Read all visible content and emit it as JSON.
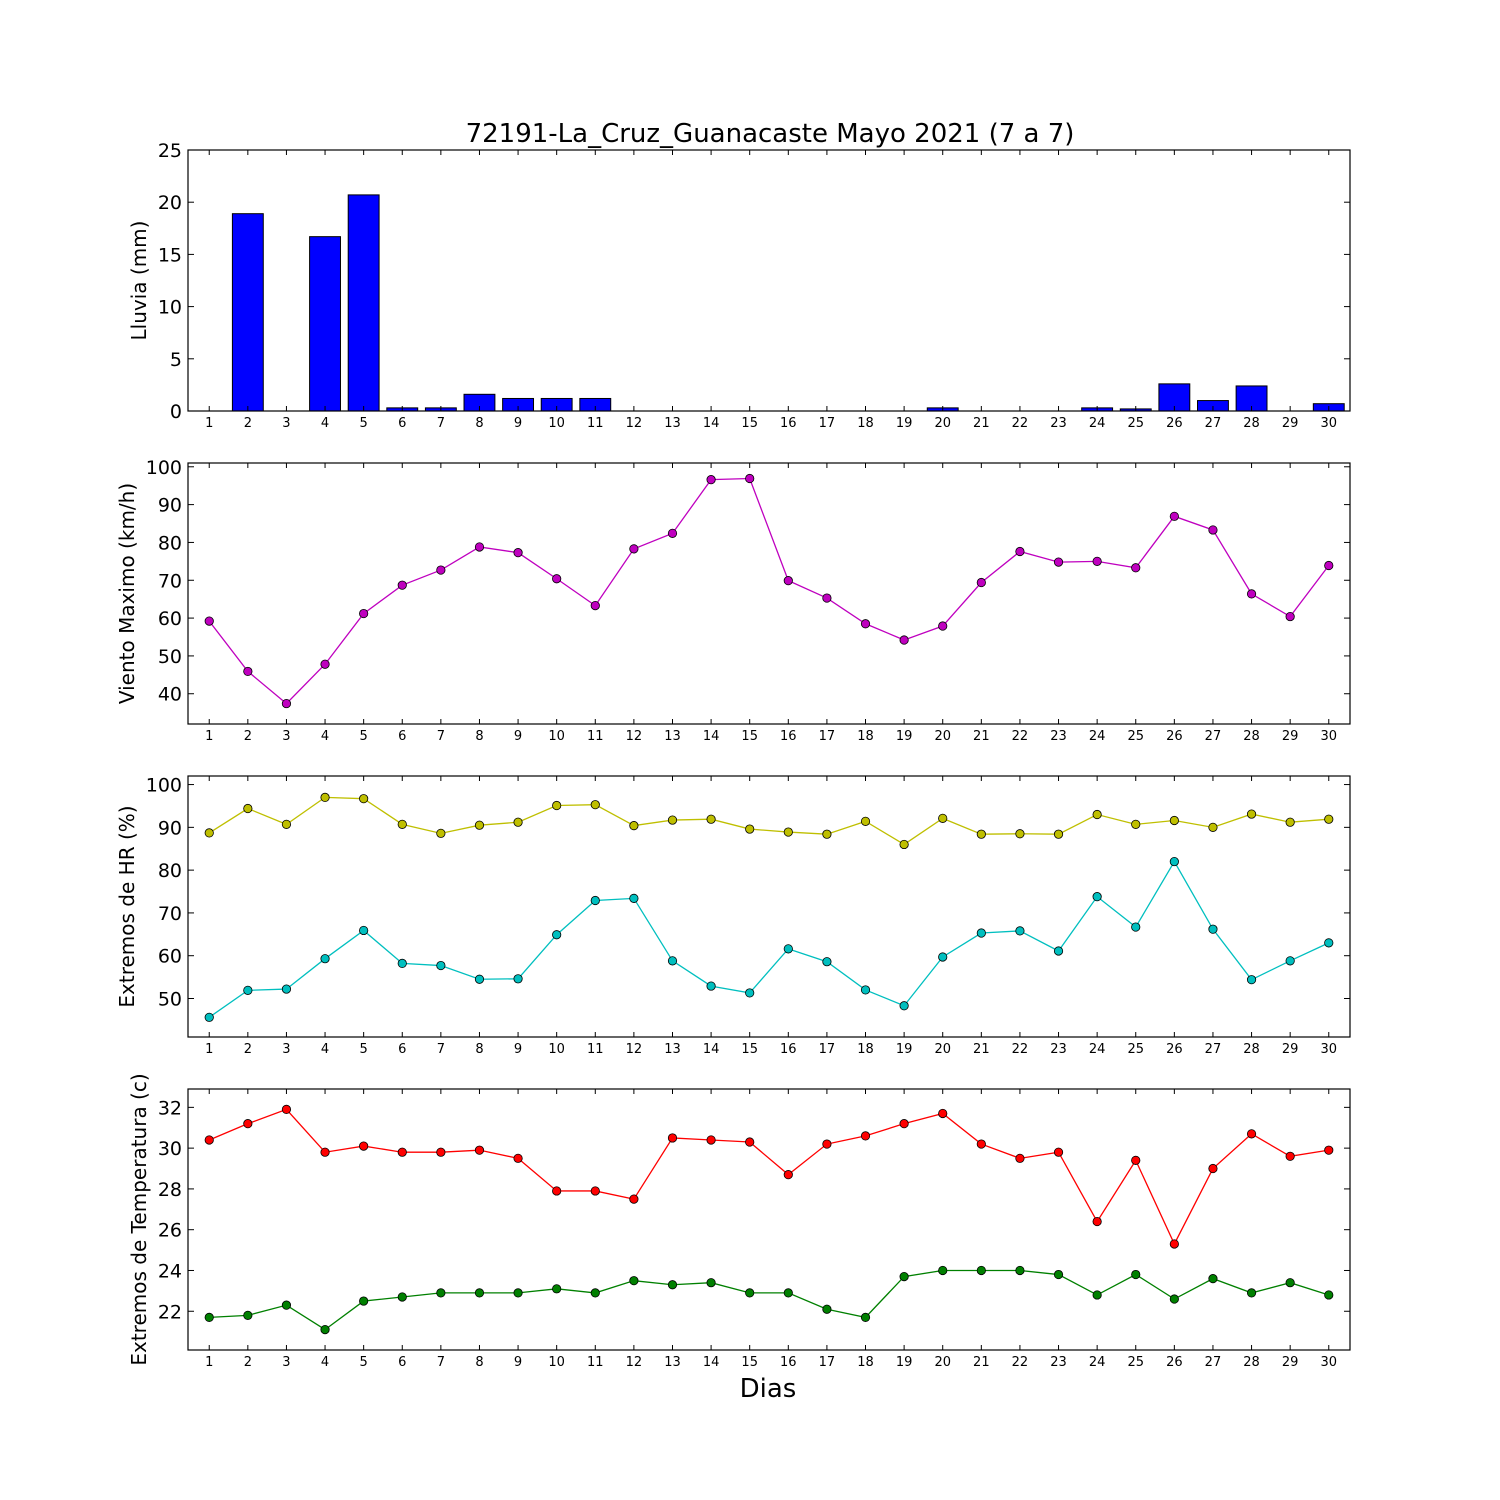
{
  "figure": {
    "title": "72191-La_Cruz_Guanacaste Mayo 2021  (7 a 7)",
    "xlabel": "Dias"
  },
  "chart_data": [
    {
      "type": "bar",
      "ylabel": "Lluvia (mm)",
      "categories": [
        "1",
        "2",
        "3",
        "4",
        "5",
        "6",
        "7",
        "8",
        "9",
        "10",
        "11",
        "12",
        "13",
        "14",
        "15",
        "16",
        "17",
        "18",
        "19",
        "20",
        "21",
        "22",
        "23",
        "24",
        "25",
        "26",
        "27",
        "28",
        "29",
        "30"
      ],
      "ylim": [
        0,
        25
      ],
      "yticks": [
        0,
        5,
        10,
        15,
        20,
        25
      ],
      "bar_color": "#0000ff",
      "series": [
        {
          "values": [
            0,
            18.9,
            0,
            16.7,
            20.7,
            0.3,
            0.3,
            1.6,
            1.2,
            1.2,
            1.2,
            0,
            0,
            0,
            0,
            0,
            0,
            0,
            0,
            0.3,
            0,
            0,
            0,
            0.3,
            0.2,
            2.6,
            1.0,
            2.4,
            0,
            0.7
          ],
          "color": "#0000ff"
        }
      ]
    },
    {
      "type": "line",
      "ylabel": "Viento Maximo (km/h)",
      "categories": [
        "1",
        "2",
        "3",
        "4",
        "5",
        "6",
        "7",
        "8",
        "9",
        "10",
        "11",
        "12",
        "13",
        "14",
        "15",
        "16",
        "17",
        "18",
        "19",
        "20",
        "21",
        "22",
        "23",
        "24",
        "25",
        "26",
        "27",
        "28",
        "29",
        "30"
      ],
      "ylim": [
        32,
        101
      ],
      "yticks": [
        40,
        50,
        60,
        70,
        80,
        90,
        100
      ],
      "series": [
        {
          "values": [
            59.2,
            45.9,
            37.4,
            47.8,
            61.2,
            68.7,
            72.7,
            78.8,
            77.3,
            70.4,
            63.3,
            78.3,
            82.4,
            96.6,
            96.9,
            69.9,
            65.3,
            58.5,
            54.2,
            57.9,
            69.4,
            77.6,
            74.8,
            75.0,
            73.3,
            86.9,
            83.3,
            66.4,
            60.4,
            73.9
          ],
          "color": "#bf00bf"
        }
      ]
    },
    {
      "type": "line",
      "ylabel": "Extremos de HR (%)",
      "categories": [
        "1",
        "2",
        "3",
        "4",
        "5",
        "6",
        "7",
        "8",
        "9",
        "10",
        "11",
        "12",
        "13",
        "14",
        "15",
        "16",
        "17",
        "18",
        "19",
        "20",
        "21",
        "22",
        "23",
        "24",
        "25",
        "26",
        "27",
        "28",
        "29",
        "30"
      ],
      "ylim": [
        41,
        102
      ],
      "yticks": [
        50,
        60,
        70,
        80,
        90,
        100
      ],
      "series": [
        {
          "values": [
            88.7,
            94.4,
            90.7,
            97.0,
            96.7,
            90.7,
            88.6,
            90.5,
            91.2,
            95.1,
            95.3,
            90.4,
            91.7,
            91.9,
            89.6,
            88.9,
            88.4,
            91.4,
            86.0,
            92.1,
            88.4,
            88.5,
            88.4,
            93.0,
            90.7,
            91.6,
            90.0,
            93.1,
            91.2,
            91.9
          ],
          "color": "#bfbf00"
        },
        {
          "values": [
            45.6,
            51.9,
            52.2,
            59.3,
            65.9,
            58.2,
            57.7,
            54.5,
            54.6,
            64.9,
            72.9,
            73.4,
            58.8,
            52.9,
            51.3,
            61.6,
            58.6,
            52.0,
            48.3,
            59.7,
            65.3,
            65.8,
            61.1,
            73.8,
            66.7,
            82.0,
            66.2,
            54.4,
            58.8,
            63.0
          ],
          "color": "#00bfbf"
        }
      ]
    },
    {
      "type": "line",
      "ylabel": "Extremos de Temperatura (c)",
      "categories": [
        "1",
        "2",
        "3",
        "4",
        "5",
        "6",
        "7",
        "8",
        "9",
        "10",
        "11",
        "12",
        "13",
        "14",
        "15",
        "16",
        "17",
        "18",
        "19",
        "20",
        "21",
        "22",
        "23",
        "24",
        "25",
        "26",
        "27",
        "28",
        "29",
        "30"
      ],
      "ylim": [
        20.1,
        32.9
      ],
      "yticks": [
        22,
        24,
        26,
        28,
        30,
        32
      ],
      "series": [
        {
          "values": [
            30.4,
            31.2,
            31.9,
            29.8,
            30.1,
            29.8,
            29.8,
            29.9,
            29.5,
            27.9,
            27.9,
            27.5,
            30.5,
            30.4,
            30.3,
            28.7,
            30.2,
            30.6,
            31.2,
            31.7,
            30.2,
            29.5,
            29.8,
            26.4,
            29.4,
            25.3,
            29.0,
            30.7,
            29.6,
            29.9
          ],
          "color": "#ff0000"
        },
        {
          "values": [
            21.7,
            21.8,
            22.3,
            21.1,
            22.5,
            22.7,
            22.9,
            22.9,
            22.9,
            23.1,
            22.9,
            23.5,
            23.3,
            23.4,
            22.9,
            22.9,
            22.1,
            21.7,
            23.7,
            24.0,
            24.0,
            24.0,
            23.8,
            22.8,
            23.8,
            22.6,
            23.6,
            22.9,
            23.4,
            22.8
          ],
          "color": "#008000"
        }
      ]
    }
  ]
}
